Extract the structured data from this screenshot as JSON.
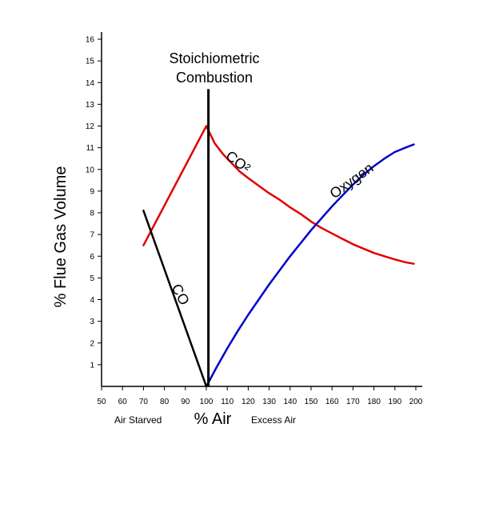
{
  "chart_data": {
    "type": "line",
    "title": "",
    "xlabel": "% Air",
    "ylabel": "% Flue Gas Volume",
    "xlim": [
      50,
      200
    ],
    "ylim": [
      0,
      16.5
    ],
    "x_ticks": [
      50,
      60,
      70,
      80,
      90,
      100,
      110,
      120,
      130,
      140,
      150,
      160,
      170,
      180,
      190,
      200
    ],
    "y_ticks": [
      1,
      2,
      3,
      4,
      5,
      6,
      7,
      8,
      9,
      10,
      11,
      12,
      13,
      14,
      15,
      16
    ],
    "grid": false,
    "legend": "none",
    "region_labels": {
      "left": "Air Starved",
      "right": "Excess Air"
    },
    "annotation": {
      "line1": "Stoichiometric",
      "line2": "Combustion"
    },
    "series": [
      {
        "name": "CO²",
        "color": "#e00000",
        "x": [
          70,
          100,
          104,
          108,
          112,
          116,
          120,
          125,
          130,
          135,
          140,
          145,
          150,
          155,
          160,
          165,
          170,
          175,
          180,
          185,
          190,
          195,
          199
        ],
        "y": [
          6.5,
          12.0,
          11.2,
          10.7,
          10.3,
          9.9,
          9.6,
          9.25,
          8.9,
          8.6,
          8.25,
          7.95,
          7.6,
          7.3,
          7.05,
          6.8,
          6.55,
          6.35,
          6.15,
          6.0,
          5.85,
          5.72,
          5.65
        ]
      },
      {
        "name": "Oxygen",
        "color": "#0000cc",
        "x": [
          100,
          105,
          110,
          115,
          120,
          125,
          130,
          135,
          140,
          145,
          150,
          155,
          160,
          165,
          170,
          175,
          180,
          185,
          190,
          195,
          199
        ],
        "y": [
          0.0,
          0.9,
          1.75,
          2.55,
          3.3,
          4.0,
          4.7,
          5.35,
          6.0,
          6.6,
          7.2,
          7.75,
          8.3,
          8.8,
          9.3,
          9.75,
          10.15,
          10.5,
          10.8,
          11.0,
          11.15
        ]
      },
      {
        "name": "CO",
        "color": "#000000",
        "x": [
          70,
          100
        ],
        "y": [
          8.1,
          0.0
        ]
      }
    ],
    "markers": [
      {
        "type": "vline",
        "x": 101,
        "y_top": 13.7,
        "color": "#000000"
      }
    ]
  }
}
